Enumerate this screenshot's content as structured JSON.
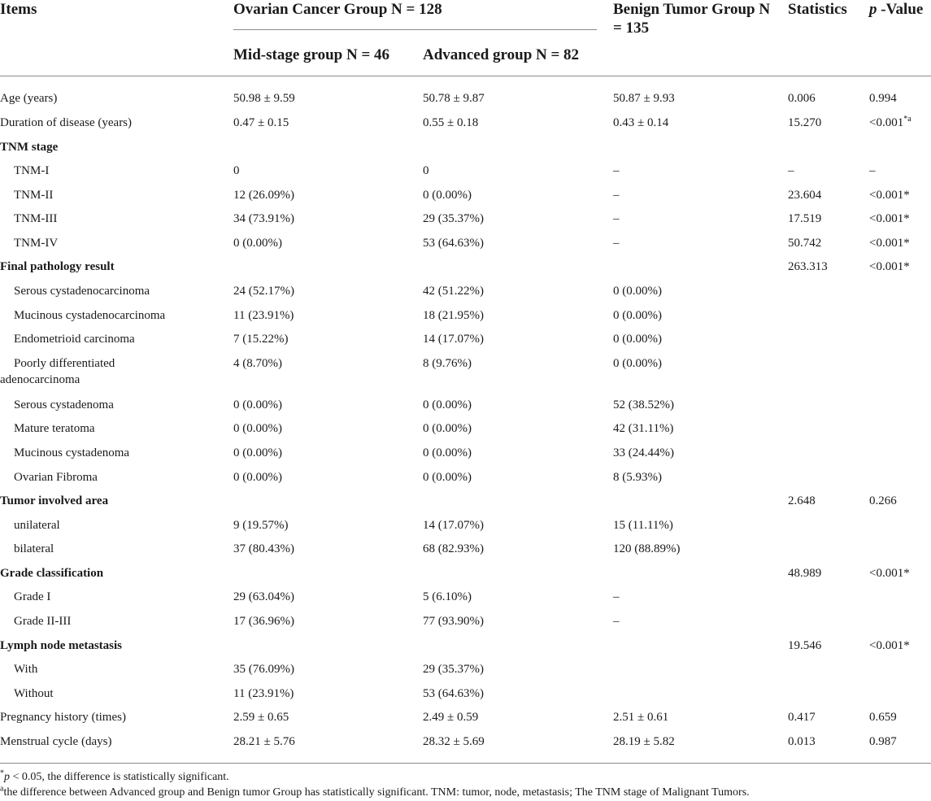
{
  "header": {
    "items": "Items",
    "ovarian_group": "Ovarian Cancer Group N = 128",
    "mid_stage": "Mid-stage group N = 46",
    "advanced": "Advanced group N = 82",
    "benign": "Benign Tumor Group N = 135",
    "statistics": "Statistics",
    "p_italic": "p",
    "p_rest": " -Value"
  },
  "rows": [
    {
      "item": "Age (years)",
      "kind": "data",
      "mid": "50.98 ± 9.59",
      "adv": "50.78 ± 9.87",
      "benign": "50.87 ± 9.93",
      "stat": "0.006",
      "p": "0.994"
    },
    {
      "item": "Duration of disease (years)",
      "kind": "data",
      "mid": "0.47 ± 0.15",
      "adv": "0.55 ± 0.18",
      "benign": "0.43 ± 0.14",
      "stat": "15.270",
      "p": "<0.001",
      "p_sup": "*a"
    },
    {
      "item": "TNM stage",
      "kind": "section",
      "mid": "",
      "adv": "",
      "benign": "",
      "stat": "",
      "p": ""
    },
    {
      "item": "TNM-I",
      "kind": "sub",
      "mid": "0",
      "adv": "0",
      "benign": "–",
      "stat": "–",
      "p": "–"
    },
    {
      "item": "TNM-II",
      "kind": "sub",
      "mid": "12 (26.09%)",
      "adv": "0 (0.00%)",
      "benign": "–",
      "stat": "23.604",
      "p": "<0.001*"
    },
    {
      "item": "TNM-III",
      "kind": "sub",
      "mid": "34 (73.91%)",
      "adv": "29 (35.37%)",
      "benign": "–",
      "stat": "17.519",
      "p": "<0.001*"
    },
    {
      "item": "TNM-IV",
      "kind": "sub",
      "mid": "0 (0.00%)",
      "adv": "53 (64.63%)",
      "benign": "–",
      "stat": "50.742",
      "p": "<0.001*"
    },
    {
      "item": "Final pathology result",
      "kind": "section",
      "mid": "",
      "adv": "",
      "benign": "",
      "stat": "263.313",
      "p": "<0.001*"
    },
    {
      "item": "Serous cystadenocarcinoma",
      "kind": "sub",
      "mid": "24 (52.17%)",
      "adv": "42 (51.22%)",
      "benign": "0 (0.00%)",
      "stat": "",
      "p": ""
    },
    {
      "item": "Mucinous cystadenocarcinoma",
      "kind": "sub",
      "mid": "11 (23.91%)",
      "adv": "18 (21.95%)",
      "benign": "0 (0.00%)",
      "stat": "",
      "p": ""
    },
    {
      "item": "Endometrioid carcinoma",
      "kind": "sub",
      "mid": "7 (15.22%)",
      "adv": "14 (17.07%)",
      "benign": "0 (0.00%)",
      "stat": "",
      "p": ""
    },
    {
      "item": "Poorly differentiated adenocarcinoma",
      "kind": "subwrap",
      "mid": "4 (8.70%)",
      "adv": "8 (9.76%)",
      "benign": "0 (0.00%)",
      "stat": "",
      "p": ""
    },
    {
      "item": "Serous cystadenoma",
      "kind": "sub",
      "mid": "0 (0.00%)",
      "adv": "0 (0.00%)",
      "benign": "52 (38.52%)",
      "stat": "",
      "p": ""
    },
    {
      "item": "Mature teratoma",
      "kind": "sub",
      "mid": "0 (0.00%)",
      "adv": "0 (0.00%)",
      "benign": "42 (31.11%)",
      "stat": "",
      "p": ""
    },
    {
      "item": "Mucinous cystadenoma",
      "kind": "sub",
      "mid": "0 (0.00%)",
      "adv": "0 (0.00%)",
      "benign": "33 (24.44%)",
      "stat": "",
      "p": ""
    },
    {
      "item": "Ovarian Fibroma",
      "kind": "sub",
      "mid": "0 (0.00%)",
      "adv": "0 (0.00%)",
      "benign": "8 (5.93%)",
      "stat": "",
      "p": ""
    },
    {
      "item": "Tumor involved area",
      "kind": "section",
      "mid": "",
      "adv": "",
      "benign": "",
      "stat": "2.648",
      "p": "0.266"
    },
    {
      "item": "unilateral",
      "kind": "sub",
      "mid": "9 (19.57%)",
      "adv": "14 (17.07%)",
      "benign": "15 (11.11%)",
      "stat": "",
      "p": ""
    },
    {
      "item": "bilateral",
      "kind": "sub",
      "mid": "37 (80.43%)",
      "adv": "68 (82.93%)",
      "benign": "120 (88.89%)",
      "stat": "",
      "p": ""
    },
    {
      "item": "Grade classification",
      "kind": "section",
      "mid": "",
      "adv": "",
      "benign": "",
      "stat": "48.989",
      "p": "<0.001*"
    },
    {
      "item": "Grade I",
      "kind": "sub",
      "mid": "29 (63.04%)",
      "adv": "5 (6.10%)",
      "benign": "–",
      "stat": "",
      "p": ""
    },
    {
      "item": "Grade II-III",
      "kind": "sub",
      "mid": "17 (36.96%)",
      "adv": "77 (93.90%)",
      "benign": "–",
      "stat": "",
      "p": ""
    },
    {
      "item": "Lymph node metastasis",
      "kind": "section",
      "mid": "",
      "adv": "",
      "benign": "",
      "stat": "19.546",
      "p": "<0.001*"
    },
    {
      "item": "With",
      "kind": "sub",
      "mid": "35 (76.09%)",
      "adv": "29 (35.37%)",
      "benign": "",
      "stat": "",
      "p": ""
    },
    {
      "item": "Without",
      "kind": "sub",
      "mid": "11 (23.91%)",
      "adv": "53 (64.63%)",
      "benign": "",
      "stat": "",
      "p": ""
    },
    {
      "item": "Pregnancy history (times)",
      "kind": "data",
      "mid": "2.59 ± 0.65",
      "adv": "2.49 ± 0.59",
      "benign": "2.51 ± 0.61",
      "stat": "0.417",
      "p": "0.659"
    },
    {
      "item": "Menstrual cycle (days)",
      "kind": "data",
      "mid": "28.21 ± 5.76",
      "adv": "28.32 ± 5.69",
      "benign": "28.19 ± 5.82",
      "stat": "0.013",
      "p": "0.987"
    }
  ],
  "footnotes": {
    "f1_mark": "*",
    "f1_p": "p",
    "f1_text": " < 0.05, the difference is statistically significant.",
    "f2_mark": "a",
    "f2_text": "the difference between Advanced group and Benign tumor Group has statistically significant. TNM: tumor, node, metastasis; The TNM stage of Malignant Tumors."
  }
}
